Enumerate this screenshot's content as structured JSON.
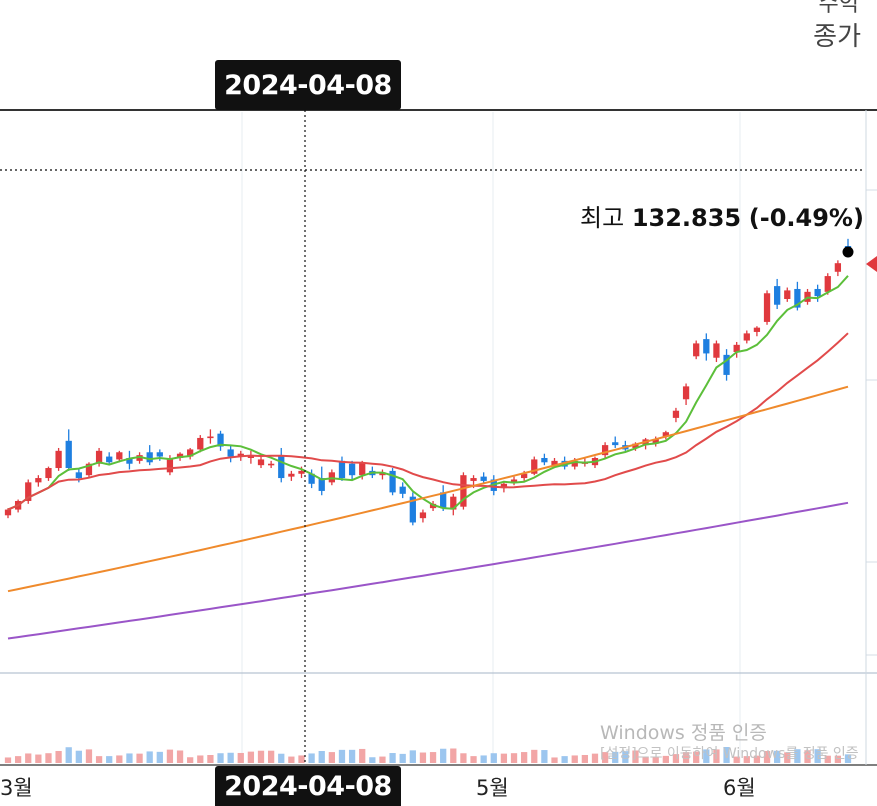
{
  "header": {
    "right_label": "종가",
    "right_label_partial": "수익"
  },
  "crosshair": {
    "date": "2024-04-08"
  },
  "high_annotation": {
    "prefix": "최고",
    "value": "132.835",
    "change": "(-0.49%)"
  },
  "watermark": {
    "line1": "Windows 정품 인증",
    "line2": "[설정]으로 이동하여 Windows를 정품 인증"
  },
  "colors": {
    "up": "#e0393e",
    "down": "#1e7fe0",
    "ma5": "#5cbf3a",
    "ma20": "#e14b4b",
    "ma60": "#ef8a2c",
    "ma120": "#9a55c8",
    "vol_up": "#f2a6a6",
    "vol_down": "#9cc6ef"
  },
  "chart_data": {
    "type": "candlestick",
    "x_axis_labels": [
      "3월",
      "5월",
      "6월"
    ],
    "y_range": [
      103,
      140
    ],
    "candles": [
      [
        113.8,
        114.3,
        113.6,
        114.2
      ],
      [
        114.2,
        114.9,
        114.0,
        114.8
      ],
      [
        114.8,
        116.3,
        114.6,
        116.1
      ],
      [
        116.1,
        116.6,
        115.8,
        116.4
      ],
      [
        116.4,
        117.2,
        116.2,
        117.1
      ],
      [
        117.1,
        118.5,
        116.9,
        118.3
      ],
      [
        119.0,
        119.8,
        116.9,
        117.1
      ],
      [
        116.8,
        117.0,
        116.1,
        116.4
      ],
      [
        116.6,
        117.5,
        116.4,
        117.4
      ],
      [
        117.4,
        118.5,
        117.2,
        118.3
      ],
      [
        117.9,
        118.2,
        117.3,
        117.5
      ],
      [
        117.7,
        118.3,
        117.5,
        118.2
      ],
      [
        117.8,
        118.3,
        117.0,
        117.4
      ],
      [
        117.6,
        118.2,
        117.4,
        118.0
      ],
      [
        118.2,
        118.7,
        117.3,
        117.5
      ],
      [
        118.2,
        118.4,
        117.6,
        117.9
      ],
      [
        116.8,
        118.0,
        116.6,
        117.8
      ],
      [
        117.8,
        118.2,
        117.6,
        118.1
      ],
      [
        117.9,
        118.5,
        117.7,
        118.4
      ],
      [
        118.4,
        119.4,
        118.2,
        119.2
      ],
      [
        119.2,
        119.8,
        118.8,
        119.3
      ],
      [
        119.5,
        119.7,
        118.3,
        118.6
      ],
      [
        118.4,
        118.7,
        117.5,
        117.9
      ],
      [
        117.9,
        118.3,
        117.6,
        118.1
      ],
      [
        117.8,
        118.3,
        117.4,
        118.0
      ],
      [
        117.3,
        118.0,
        117.1,
        117.7
      ],
      [
        117.3,
        117.6,
        117.1,
        117.4
      ],
      [
        118.0,
        118.5,
        116.1,
        116.4
      ],
      [
        116.5,
        116.9,
        116.2,
        116.7
      ],
      [
        116.7,
        117.2,
        116.4,
        116.9
      ],
      [
        116.7,
        117.0,
        115.7,
        116.0
      ],
      [
        116.4,
        117.2,
        115.2,
        115.5
      ],
      [
        116.1,
        117.0,
        115.9,
        116.8
      ],
      [
        117.6,
        117.9,
        116.2,
        116.4
      ],
      [
        117.4,
        117.6,
        116.3,
        116.6
      ],
      [
        116.6,
        117.6,
        116.3,
        117.5
      ],
      [
        116.9,
        117.2,
        116.4,
        116.6
      ],
      [
        116.6,
        117.0,
        116.3,
        116.8
      ],
      [
        116.9,
        117.1,
        115.2,
        115.4
      ],
      [
        115.8,
        116.1,
        115.0,
        115.3
      ],
      [
        115.1,
        115.4,
        113.1,
        113.3
      ],
      [
        113.6,
        114.2,
        113.3,
        114.0
      ],
      [
        114.3,
        114.8,
        114.1,
        114.6
      ],
      [
        115.4,
        115.9,
        114.1,
        114.3
      ],
      [
        114.2,
        115.3,
        113.8,
        115.1
      ],
      [
        114.4,
        116.8,
        114.2,
        116.6
      ],
      [
        116.2,
        116.6,
        115.7,
        116.4
      ],
      [
        116.5,
        116.8,
        116.0,
        116.2
      ],
      [
        116.3,
        116.6,
        115.2,
        115.5
      ],
      [
        115.7,
        116.2,
        115.4,
        116.0
      ],
      [
        116.1,
        116.5,
        115.9,
        116.3
      ],
      [
        116.4,
        116.9,
        116.2,
        116.7
      ],
      [
        116.7,
        117.9,
        116.6,
        117.7
      ],
      [
        117.8,
        118.1,
        117.3,
        117.5
      ],
      [
        117.3,
        117.8,
        117.1,
        117.6
      ],
      [
        117.6,
        117.9,
        117.0,
        117.2
      ],
      [
        117.2,
        117.8,
        117.0,
        117.6
      ],
      [
        117.5,
        117.8,
        117.2,
        117.5
      ],
      [
        117.3,
        117.9,
        117.1,
        117.8
      ],
      [
        118.0,
        118.9,
        117.8,
        118.7
      ],
      [
        118.9,
        119.3,
        118.5,
        118.7
      ],
      [
        118.7,
        119.0,
        118.3,
        118.4
      ],
      [
        118.5,
        118.9,
        118.3,
        118.8
      ],
      [
        118.7,
        119.2,
        118.4,
        119.1
      ],
      [
        118.8,
        119.3,
        118.6,
        119.1
      ],
      [
        119.3,
        119.7,
        119.1,
        119.6
      ],
      [
        120.6,
        121.3,
        120.3,
        121.1
      ],
      [
        121.9,
        123.0,
        121.5,
        122.8
      ],
      [
        124.9,
        126.0,
        124.7,
        125.8
      ],
      [
        126.1,
        126.5,
        124.6,
        125.1
      ],
      [
        124.8,
        126.0,
        124.5,
        125.8
      ],
      [
        125.0,
        125.4,
        123.2,
        123.6
      ],
      [
        125.2,
        125.9,
        124.8,
        125.7
      ],
      [
        126.0,
        126.7,
        125.8,
        126.5
      ],
      [
        126.6,
        127.0,
        126.3,
        126.9
      ],
      [
        127.3,
        129.5,
        127.1,
        129.3
      ],
      [
        129.8,
        130.3,
        128.2,
        128.5
      ],
      [
        128.9,
        129.7,
        128.7,
        129.5
      ],
      [
        129.6,
        130.1,
        128.1,
        128.3
      ],
      [
        128.7,
        129.6,
        128.5,
        129.4
      ],
      [
        129.6,
        129.9,
        128.7,
        129.1
      ],
      [
        129.4,
        130.7,
        129.2,
        130.5
      ],
      [
        130.8,
        131.6,
        130.5,
        131.4
      ],
      [
        132.6,
        133.1,
        131.8,
        132.2
      ]
    ],
    "high_point": {
      "value": 132.835,
      "change_pct": -0.49
    }
  }
}
